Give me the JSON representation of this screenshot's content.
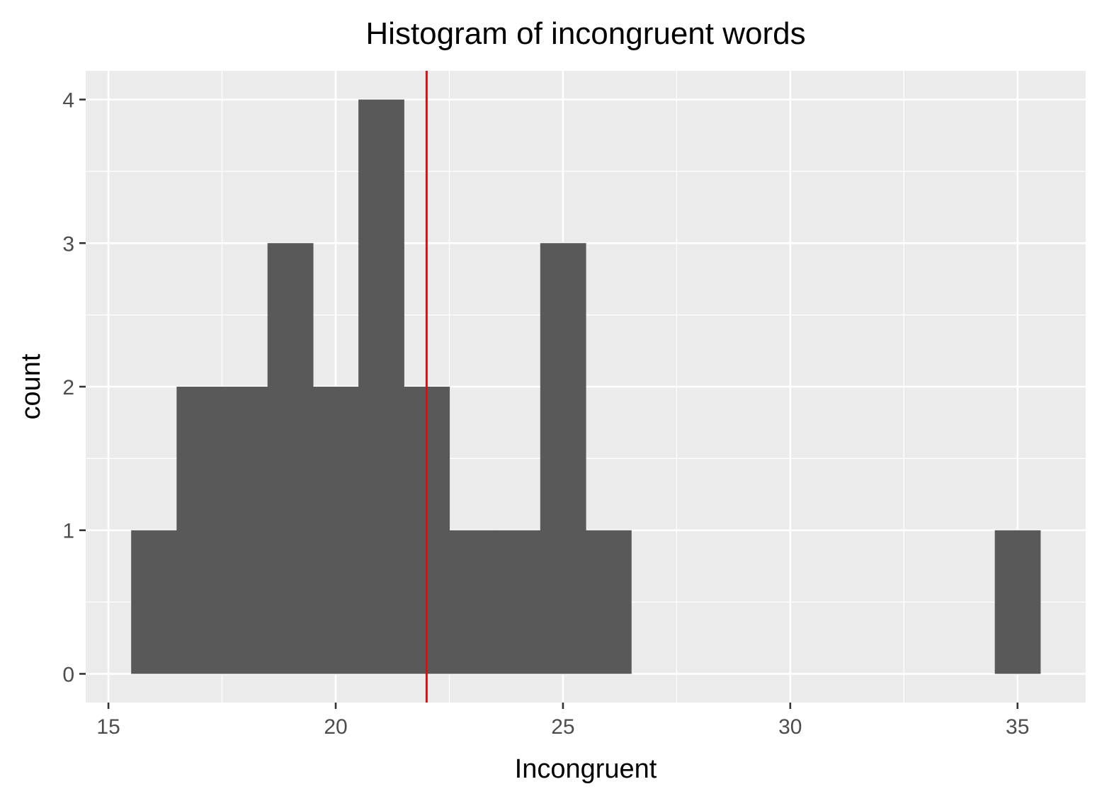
{
  "chart_data": {
    "type": "bar",
    "title": "Histogram of incongruent words",
    "xlabel": "Incongruent",
    "ylabel": "count",
    "xlim": [
      14.5,
      36.5
    ],
    "ylim": [
      -0.2,
      4.2
    ],
    "x_ticks": [
      15,
      20,
      25,
      30,
      35
    ],
    "y_ticks": [
      0,
      1,
      2,
      3,
      4
    ],
    "grid": true,
    "legend": "none",
    "bin_width": 1,
    "bins": [
      {
        "x": 16,
        "count": 1
      },
      {
        "x": 17,
        "count": 2
      },
      {
        "x": 18,
        "count": 2
      },
      {
        "x": 19,
        "count": 3
      },
      {
        "x": 20,
        "count": 2
      },
      {
        "x": 21,
        "count": 4
      },
      {
        "x": 22,
        "count": 2
      },
      {
        "x": 23,
        "count": 1
      },
      {
        "x": 24,
        "count": 1
      },
      {
        "x": 25,
        "count": 3
      },
      {
        "x": 26,
        "count": 1
      },
      {
        "x": 35,
        "count": 1
      }
    ],
    "reference_line": {
      "x": 22.0,
      "color": "#ff0000"
    },
    "colors": {
      "bar": "#595959",
      "panel": "#ebebeb",
      "grid": "#ffffff",
      "tick_text": "#4d4d4d"
    }
  }
}
